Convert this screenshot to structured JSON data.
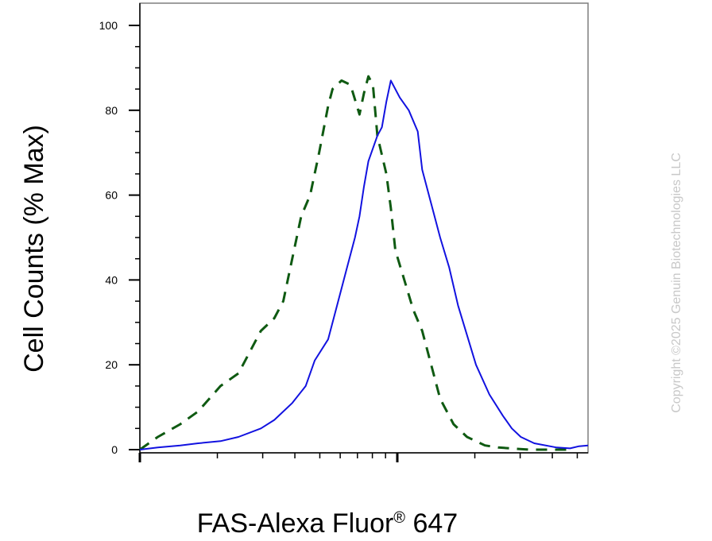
{
  "chart_data": {
    "type": "line",
    "xlabel": "FAS-Alexa Fluor",
    "xlabel_sup": "®",
    "xlabel_suffix": " 647",
    "ylabel": "Cell Counts (% Max)",
    "ylim": [
      0,
      105
    ],
    "yticks": [
      "0",
      "20",
      "40",
      "60",
      "80",
      "100"
    ],
    "xlim": [
      0,
      1
    ],
    "x_scale": "log",
    "copyright": "Copyright ©2025 Genuin Biotechnologies LLC",
    "series": [
      {
        "style": "dashed",
        "color": "#0f5a12",
        "x": [
          0.0,
          0.04,
          0.09,
          0.13,
          0.18,
          0.22,
          0.27,
          0.3,
          0.32,
          0.36,
          0.38,
          0.4,
          0.42,
          0.43,
          0.45,
          0.47,
          0.49,
          0.5,
          0.51,
          0.52,
          0.53,
          0.55,
          0.56,
          0.57,
          0.59,
          0.61,
          0.63,
          0.65,
          0.67,
          0.7,
          0.73,
          0.77,
          0.8,
          0.84,
          0.87,
          0.9,
          0.94,
          0.96
        ],
        "y": [
          0,
          3,
          6,
          9,
          15,
          18,
          28,
          31,
          35,
          55,
          60,
          70,
          81,
          85,
          87,
          86,
          79,
          84,
          88,
          86,
          74,
          65,
          57,
          47,
          40,
          33,
          28,
          20,
          12,
          6,
          3,
          1,
          0.5,
          0.2,
          0,
          0,
          0,
          0
        ]
      },
      {
        "style": "solid",
        "color": "#1212e0",
        "x": [
          0.0,
          0.04,
          0.09,
          0.13,
          0.18,
          0.22,
          0.27,
          0.3,
          0.34,
          0.37,
          0.39,
          0.42,
          0.44,
          0.46,
          0.48,
          0.49,
          0.5,
          0.51,
          0.53,
          0.54,
          0.55,
          0.56,
          0.58,
          0.6,
          0.62,
          0.63,
          0.65,
          0.67,
          0.69,
          0.71,
          0.73,
          0.75,
          0.78,
          0.81,
          0.83,
          0.85,
          0.88,
          0.93,
          0.96,
          0.98,
          1.0
        ],
        "y": [
          0,
          0.5,
          1,
          1.5,
          2,
          3,
          5,
          7,
          11,
          15,
          21,
          26,
          34,
          42,
          50,
          55,
          62,
          68,
          74,
          76,
          82,
          87,
          83,
          80,
          75,
          66,
          58,
          50,
          43,
          34,
          27,
          20,
          13,
          8,
          5,
          3,
          1.5,
          0.5,
          0.3,
          0.8,
          1
        ]
      }
    ]
  }
}
